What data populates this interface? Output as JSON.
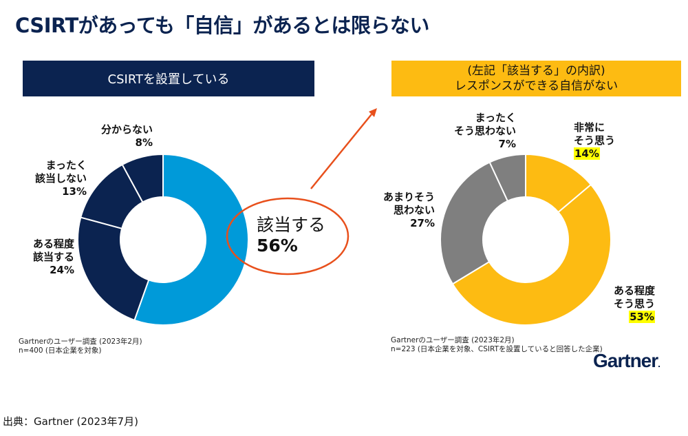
{
  "title": "CSIRTがあっても「自信」があるとは限らない",
  "left_header": "CSIRTを設置している",
  "right_header": {
    "line1": "(左記「該当する」の内訳)",
    "line2": "レスポンスができる自信がない"
  },
  "callout": {
    "label": "該当する",
    "value": "56%"
  },
  "colors": {
    "navy": "#0b2350",
    "blue": "#009ad9",
    "gold": "#fdbb12",
    "gray": "#7f7f7f",
    "orange": "#e8501c",
    "highlight": "#ffff00"
  },
  "chart_data": [
    {
      "type": "pie",
      "variant": "donut",
      "title": "CSIRTを設置している",
      "start": "12 o'clock, clockwise",
      "slices": [
        {
          "label": "該当する",
          "value": 56,
          "color": "#009ad9"
        },
        {
          "label": "ある程度該当する",
          "value": 24,
          "color": "#0b2350"
        },
        {
          "label": "まったく該当しない",
          "value": 13,
          "color": "#0b2350"
        },
        {
          "label": "分からない",
          "value": 8,
          "color": "#0b2350"
        }
      ],
      "labels": [
        {
          "lines": [
            "分からない"
          ],
          "pct": "8%"
        },
        {
          "lines": [
            "まったく",
            "該当しない"
          ],
          "pct": "13%"
        },
        {
          "lines": [
            "ある程度",
            "該当する"
          ],
          "pct": "24%"
        }
      ],
      "note": [
        "Gartnerのユーザー調査 (2023年2月)",
        "n=400 (日本企業を対象)"
      ]
    },
    {
      "type": "pie",
      "variant": "donut",
      "title": "(左記「該当する」の内訳) レスポンスができる自信がない",
      "start": "12 o'clock, clockwise",
      "slices": [
        {
          "label": "非常にそう思う",
          "value": 14,
          "color": "#fdbb12"
        },
        {
          "label": "ある程度そう思う",
          "value": 53,
          "color": "#fdbb12"
        },
        {
          "label": "あまりそう思わない",
          "value": 27,
          "color": "#7f7f7f"
        },
        {
          "label": "まったくそう思わない",
          "value": 7,
          "color": "#7f7f7f"
        }
      ],
      "labels": [
        {
          "lines": [
            "まったく",
            "そう思わない"
          ],
          "pct": "7%"
        },
        {
          "lines": [
            "非常に",
            "そう思う"
          ],
          "pct": "14%",
          "highlight": true
        },
        {
          "lines": [
            "あまりそう",
            "思わない"
          ],
          "pct": "27%"
        },
        {
          "lines": [
            "ある程度",
            "そう思う"
          ],
          "pct": "53%",
          "highlight": true
        }
      ],
      "note": [
        "Gartnerのユーザー調査 (2023年2月)",
        "n=223 (日本企業を対象、CSIRTを設置していると回答した企業)"
      ]
    }
  ],
  "logo": "Gartner",
  "source": "出典：Gartner (2023年7月)"
}
